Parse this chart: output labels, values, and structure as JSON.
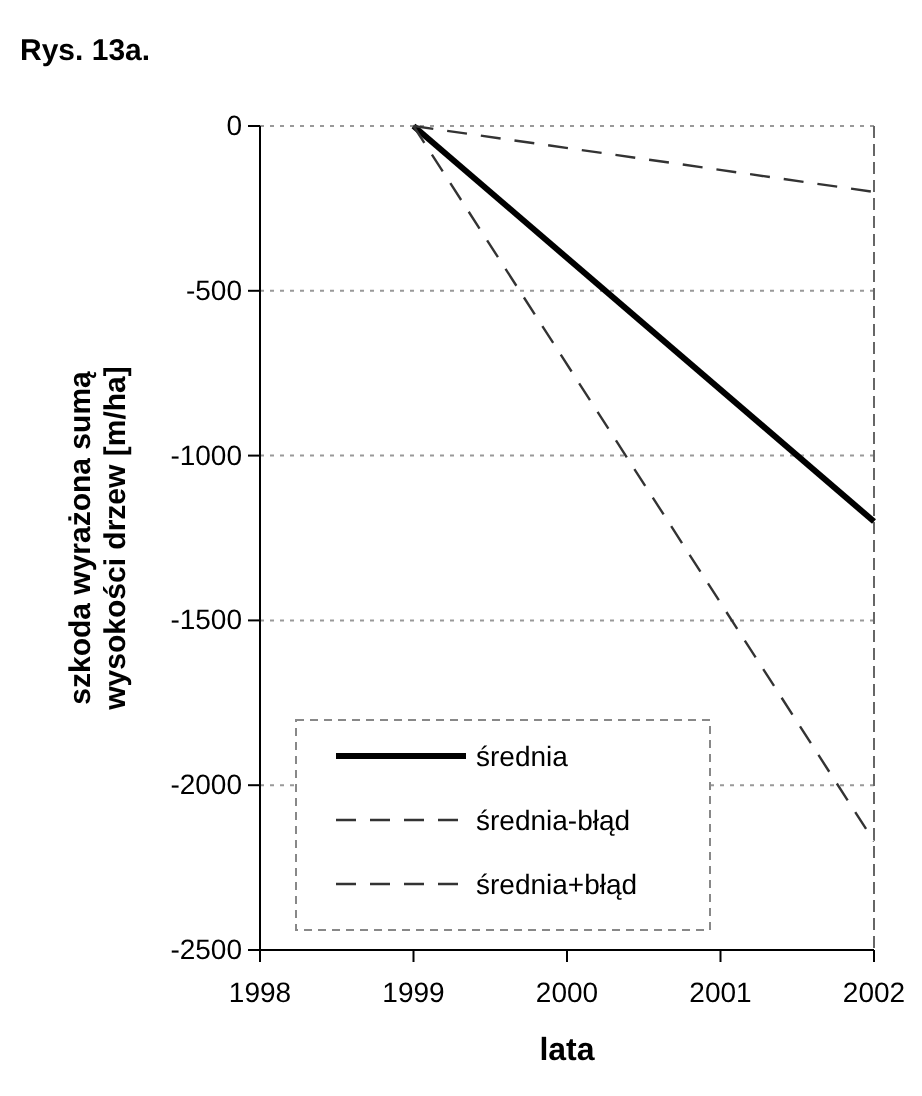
{
  "chart_data": {
    "type": "line",
    "title": "Rys. 13a.",
    "xlabel": "lata",
    "ylabel": "szkoda wyrażona sumą wysokości drzew [m/ha]",
    "x": [
      1999,
      2002
    ],
    "series": [
      {
        "name": "średnia",
        "color": "#000000",
        "values": [
          0,
          -1200
        ],
        "line_style": "solid"
      },
      {
        "name": "średnia-błąd",
        "color": "#333333",
        "values": [
          0,
          -2170
        ],
        "line_style": "dashed"
      },
      {
        "name": "średnia+błąd",
        "color": "#333333",
        "values": [
          0,
          -200
        ],
        "line_style": "dashed"
      }
    ],
    "xlim": [
      1998,
      2002
    ],
    "xticks": [
      1998,
      1999,
      2000,
      2001,
      2002
    ],
    "ylim": [
      -2500,
      0
    ],
    "yticks": [
      -2500,
      -2000,
      -1500,
      -1000,
      -500,
      0
    ],
    "grid": "y",
    "legend": "bottom left",
    "marker": "none"
  }
}
